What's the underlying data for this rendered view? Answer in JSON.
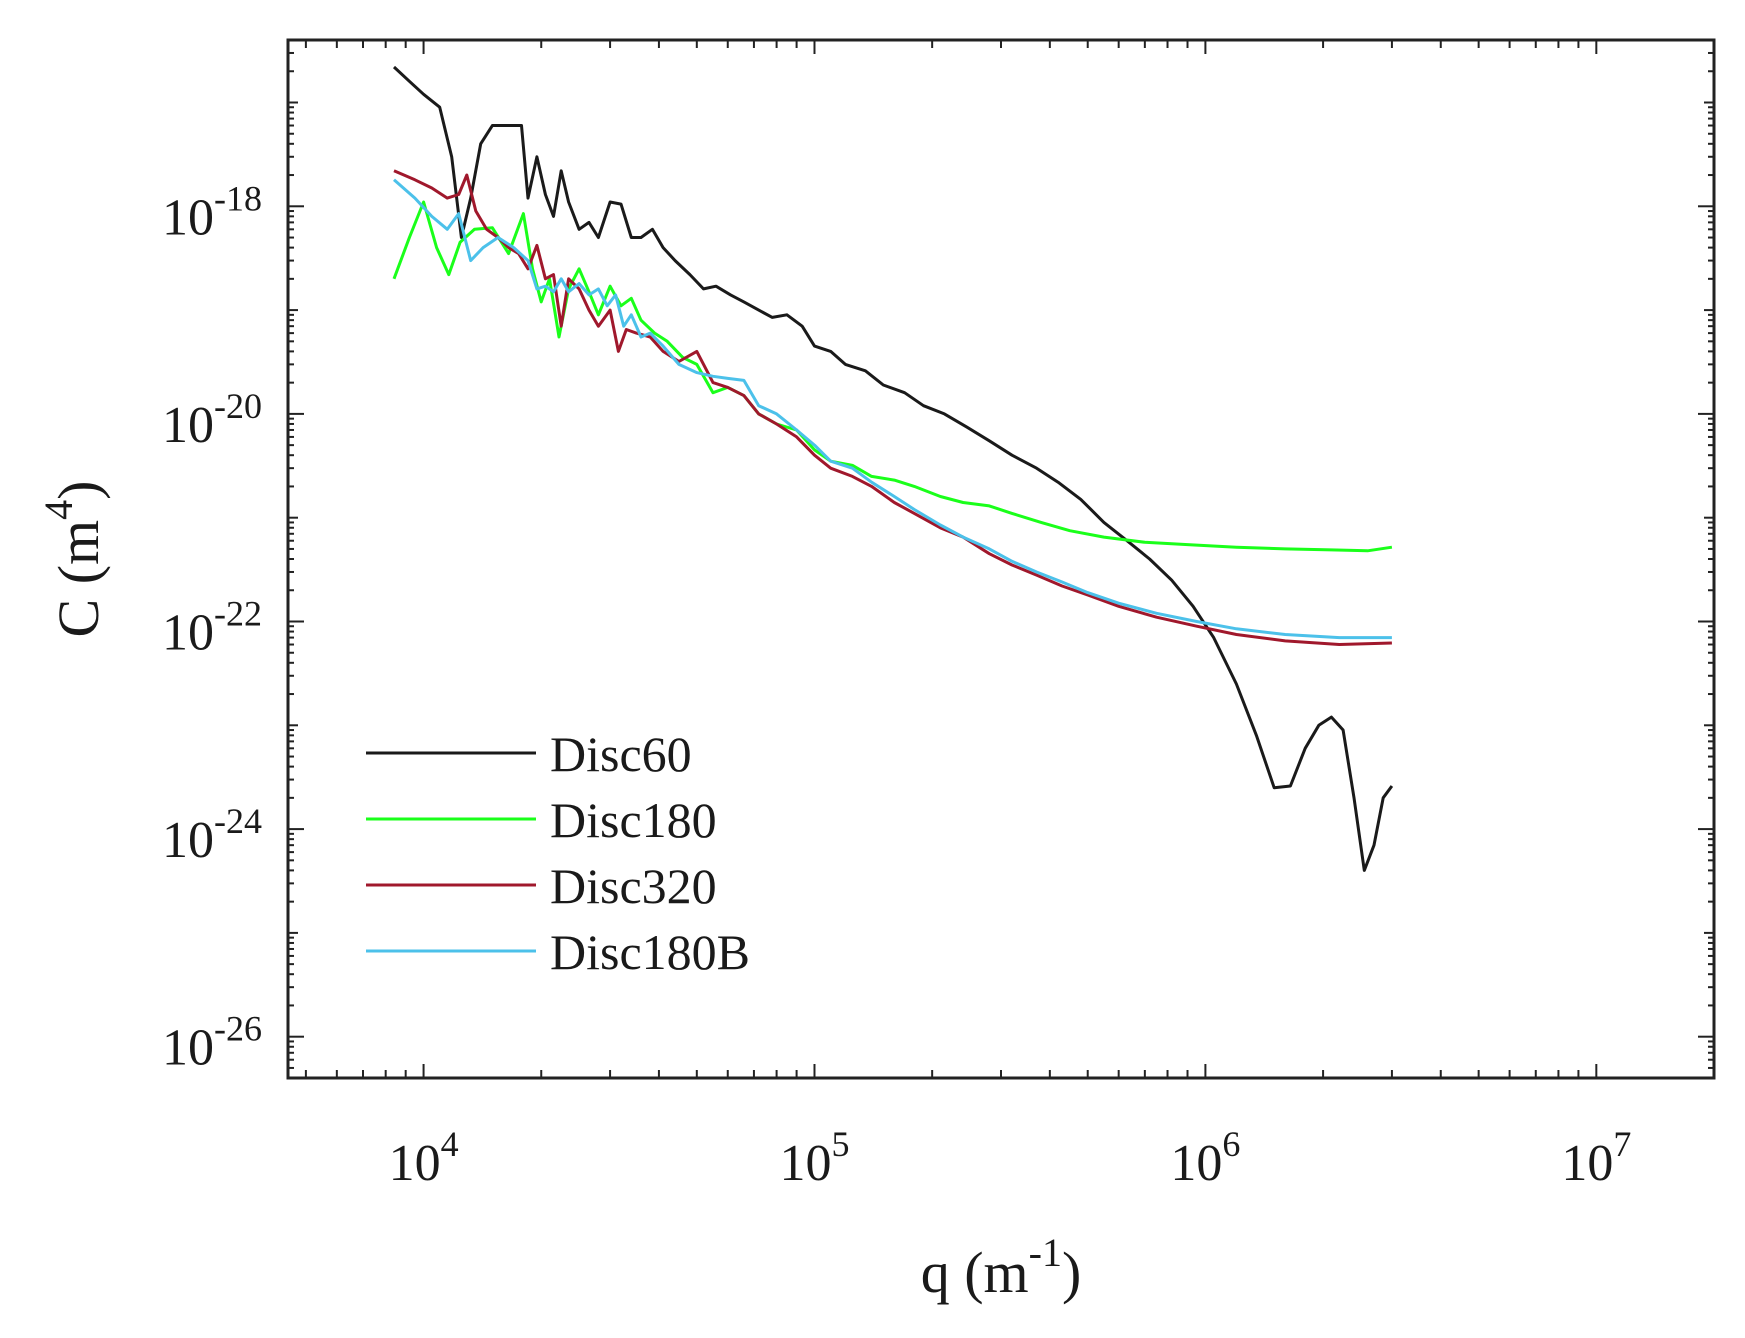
{
  "chart_data": {
    "type": "line",
    "xscale": "log",
    "yscale": "log",
    "xlim": [
      4500,
      20000000
    ],
    "ylim": [
      4e-27,
      4e-17
    ],
    "xlabel": {
      "base": "q (m",
      "sup": "-1",
      "tail": ")"
    },
    "ylabel": {
      "base": "C (m",
      "sup": "4",
      "tail": ")"
    },
    "x_ticks": [
      {
        "value": 10000,
        "base": "10",
        "exp": "4"
      },
      {
        "value": 100000,
        "base": "10",
        "exp": "5"
      },
      {
        "value": 1000000,
        "base": "10",
        "exp": "6"
      },
      {
        "value": 10000000,
        "base": "10",
        "exp": "7"
      }
    ],
    "y_ticks": [
      {
        "value": 1e-18,
        "base": "10",
        "exp": "-18"
      },
      {
        "value": 1e-20,
        "base": "10",
        "exp": "-20"
      },
      {
        "value": 1e-22,
        "base": "10",
        "exp": "-22"
      },
      {
        "value": 1e-24,
        "base": "10",
        "exp": "-24"
      },
      {
        "value": 1e-26,
        "base": "10",
        "exp": "-26"
      }
    ],
    "legend_position": "bottom-left",
    "series": [
      {
        "name": "Disc60",
        "color": "#1a1a1a",
        "points": [
          [
            8400,
            2.2e-17
          ],
          [
            9200,
            1.6e-17
          ],
          [
            10000,
            1.2e-17
          ],
          [
            11000,
            9e-18
          ],
          [
            11800,
            3e-18
          ],
          [
            12500,
            5e-19
          ],
          [
            13200,
            1.2e-18
          ],
          [
            14000,
            4e-18
          ],
          [
            15000,
            6e-18
          ],
          [
            16500,
            6e-18
          ],
          [
            17800,
            6e-18
          ],
          [
            18500,
            1.2e-18
          ],
          [
            19500,
            3e-18
          ],
          [
            20500,
            1.3e-18
          ],
          [
            21500,
            8e-19
          ],
          [
            22500,
            2.2e-18
          ],
          [
            23500,
            1.1e-18
          ],
          [
            25000,
            6e-19
          ],
          [
            26500,
            7e-19
          ],
          [
            28000,
            5e-19
          ],
          [
            30000,
            1.1e-18
          ],
          [
            32000,
            1.05e-18
          ],
          [
            34000,
            5e-19
          ],
          [
            36000,
            5e-19
          ],
          [
            38500,
            6e-19
          ],
          [
            41000,
            4e-19
          ],
          [
            44000,
            3e-19
          ],
          [
            48000,
            2.2e-19
          ],
          [
            52000,
            1.6e-19
          ],
          [
            56000,
            1.7e-19
          ],
          [
            61000,
            1.4e-19
          ],
          [
            66000,
            1.2e-19
          ],
          [
            72000,
            1e-19
          ],
          [
            78000,
            8.5e-20
          ],
          [
            85000,
            9e-20
          ],
          [
            93000,
            7e-20
          ],
          [
            100000,
            4.5e-20
          ],
          [
            110000,
            4e-20
          ],
          [
            120000,
            3e-20
          ],
          [
            135000,
            2.6e-20
          ],
          [
            150000,
            1.9e-20
          ],
          [
            170000,
            1.6e-20
          ],
          [
            190000,
            1.2e-20
          ],
          [
            215000,
            1e-20
          ],
          [
            245000,
            7.5e-21
          ],
          [
            280000,
            5.5e-21
          ],
          [
            320000,
            4e-21
          ],
          [
            370000,
            3e-21
          ],
          [
            420000,
            2.2e-21
          ],
          [
            480000,
            1.5e-21
          ],
          [
            550000,
            9e-22
          ],
          [
            630000,
            6e-22
          ],
          [
            720000,
            4e-22
          ],
          [
            820000,
            2.5e-22
          ],
          [
            930000,
            1.4e-22
          ],
          [
            1050000,
            7e-23
          ],
          [
            1200000,
            2.5e-23
          ],
          [
            1350000,
            8e-24
          ],
          [
            1500000,
            2.5e-24
          ],
          [
            1650000,
            2.6e-24
          ],
          [
            1800000,
            6e-24
          ],
          [
            1950000,
            1e-23
          ],
          [
            2100000,
            1.2e-23
          ],
          [
            2250000,
            9e-24
          ],
          [
            2400000,
            2e-24
          ],
          [
            2550000,
            4e-25
          ],
          [
            2700000,
            7e-25
          ],
          [
            2850000,
            2e-24
          ],
          [
            3000000,
            2.6e-24
          ]
        ]
      },
      {
        "name": "Disc180",
        "color": "#1aff1a",
        "points": [
          [
            8400,
            2e-19
          ],
          [
            9200,
            5e-19
          ],
          [
            10000,
            1.1e-18
          ],
          [
            10800,
            4e-19
          ],
          [
            11600,
            2.2e-19
          ],
          [
            12400,
            4.5e-19
          ],
          [
            13500,
            6e-19
          ],
          [
            15000,
            6.2e-19
          ],
          [
            16500,
            3.5e-19
          ],
          [
            18000,
            8.5e-19
          ],
          [
            19000,
            2.5e-19
          ],
          [
            20000,
            1.2e-19
          ],
          [
            21000,
            2e-19
          ],
          [
            22200,
            5.5e-20
          ],
          [
            23500,
            1.6e-19
          ],
          [
            25000,
            2.5e-19
          ],
          [
            26500,
            1.5e-19
          ],
          [
            28000,
            9e-20
          ],
          [
            30000,
            1.7e-19
          ],
          [
            32000,
            1.1e-19
          ],
          [
            34000,
            1.3e-19
          ],
          [
            36000,
            8e-20
          ],
          [
            39000,
            6e-20
          ],
          [
            42000,
            5e-20
          ],
          [
            46000,
            3.5e-20
          ],
          [
            50000,
            3e-20
          ],
          [
            55000,
            1.6e-20
          ],
          [
            60000,
            1.8e-20
          ],
          [
            66000,
            1.5e-20
          ],
          [
            72000,
            1e-20
          ],
          [
            80000,
            8e-21
          ],
          [
            90000,
            7e-21
          ],
          [
            100000,
            4.5e-21
          ],
          [
            110000,
            3.5e-21
          ],
          [
            125000,
            3.2e-21
          ],
          [
            140000,
            2.5e-21
          ],
          [
            160000,
            2.3e-21
          ],
          [
            180000,
            2e-21
          ],
          [
            210000,
            1.6e-21
          ],
          [
            240000,
            1.4e-21
          ],
          [
            280000,
            1.3e-21
          ],
          [
            320000,
            1.1e-21
          ],
          [
            380000,
            9e-22
          ],
          [
            450000,
            7.5e-22
          ],
          [
            550000,
            6.5e-22
          ],
          [
            700000,
            5.8e-22
          ],
          [
            900000,
            5.5e-22
          ],
          [
            1200000,
            5.2e-22
          ],
          [
            1600000,
            5e-22
          ],
          [
            2100000,
            4.9e-22
          ],
          [
            2600000,
            4.8e-22
          ],
          [
            3000000,
            5.2e-22
          ]
        ]
      },
      {
        "name": "Disc320",
        "color": "#a0182c",
        "points": [
          [
            8400,
            2.2e-18
          ],
          [
            9500,
            1.8e-18
          ],
          [
            10500,
            1.5e-18
          ],
          [
            11500,
            1.2e-18
          ],
          [
            12300,
            1.3e-18
          ],
          [
            12900,
            2e-18
          ],
          [
            13600,
            9e-19
          ],
          [
            14500,
            6e-19
          ],
          [
            15500,
            5e-19
          ],
          [
            16500,
            4e-19
          ],
          [
            17500,
            3.5e-19
          ],
          [
            18500,
            2.5e-19
          ],
          [
            19500,
            4.2e-19
          ],
          [
            20500,
            2e-19
          ],
          [
            21500,
            2.2e-19
          ],
          [
            22500,
            7e-20
          ],
          [
            23500,
            2e-19
          ],
          [
            25000,
            1.6e-19
          ],
          [
            26500,
            1e-19
          ],
          [
            28000,
            7e-20
          ],
          [
            30000,
            1e-19
          ],
          [
            31500,
            4e-20
          ],
          [
            33000,
            6.5e-20
          ],
          [
            35000,
            6e-20
          ],
          [
            38000,
            5.5e-20
          ],
          [
            41000,
            4e-20
          ],
          [
            45000,
            3.2e-20
          ],
          [
            50000,
            4e-20
          ],
          [
            55000,
            2e-20
          ],
          [
            60000,
            1.8e-20
          ],
          [
            66000,
            1.5e-20
          ],
          [
            72000,
            1e-20
          ],
          [
            80000,
            8e-21
          ],
          [
            90000,
            6e-21
          ],
          [
            100000,
            4e-21
          ],
          [
            110000,
            3e-21
          ],
          [
            125000,
            2.5e-21
          ],
          [
            140000,
            2e-21
          ],
          [
            160000,
            1.4e-21
          ],
          [
            180000,
            1.1e-21
          ],
          [
            210000,
            8e-22
          ],
          [
            240000,
            6.5e-22
          ],
          [
            280000,
            4.5e-22
          ],
          [
            320000,
            3.5e-22
          ],
          [
            370000,
            2.8e-22
          ],
          [
            430000,
            2.2e-22
          ],
          [
            500000,
            1.8e-22
          ],
          [
            600000,
            1.4e-22
          ],
          [
            750000,
            1.1e-22
          ],
          [
            950000,
            9e-23
          ],
          [
            1200000,
            7.5e-23
          ],
          [
            1600000,
            6.5e-23
          ],
          [
            2200000,
            6e-23
          ],
          [
            3000000,
            6.2e-23
          ]
        ]
      },
      {
        "name": "Disc180B",
        "color": "#4cc1ea",
        "points": [
          [
            8400,
            1.8e-18
          ],
          [
            9500,
            1.2e-18
          ],
          [
            10500,
            8e-19
          ],
          [
            11500,
            6e-19
          ],
          [
            12300,
            8.5e-19
          ],
          [
            13200,
            3e-19
          ],
          [
            14200,
            4e-19
          ],
          [
            15500,
            5e-19
          ],
          [
            17000,
            4e-19
          ],
          [
            18500,
            3e-19
          ],
          [
            19500,
            1.6e-19
          ],
          [
            20500,
            1.7e-19
          ],
          [
            21500,
            1.5e-19
          ],
          [
            22500,
            2e-19
          ],
          [
            23500,
            1.5e-19
          ],
          [
            25000,
            1.8e-19
          ],
          [
            26500,
            1.4e-19
          ],
          [
            28000,
            1.6e-19
          ],
          [
            29500,
            1.1e-19
          ],
          [
            31000,
            1.4e-19
          ],
          [
            32500,
            7e-20
          ],
          [
            34000,
            9e-20
          ],
          [
            36000,
            5.5e-20
          ],
          [
            38000,
            6e-20
          ],
          [
            41000,
            4.5e-20
          ],
          [
            45000,
            3e-20
          ],
          [
            50000,
            2.5e-20
          ],
          [
            55000,
            2.3e-20
          ],
          [
            60000,
            2.2e-20
          ],
          [
            66000,
            2.1e-20
          ],
          [
            72000,
            1.2e-20
          ],
          [
            80000,
            1e-20
          ],
          [
            90000,
            7e-21
          ],
          [
            100000,
            5e-21
          ],
          [
            110000,
            3.5e-21
          ],
          [
            125000,
            3e-21
          ],
          [
            140000,
            2.2e-21
          ],
          [
            160000,
            1.6e-21
          ],
          [
            180000,
            1.2e-21
          ],
          [
            210000,
            8.5e-22
          ],
          [
            240000,
            6.5e-22
          ],
          [
            280000,
            5e-22
          ],
          [
            320000,
            3.8e-22
          ],
          [
            370000,
            3e-22
          ],
          [
            430000,
            2.4e-22
          ],
          [
            500000,
            1.9e-22
          ],
          [
            600000,
            1.5e-22
          ],
          [
            750000,
            1.2e-22
          ],
          [
            950000,
            1e-22
          ],
          [
            1200000,
            8.5e-23
          ],
          [
            1600000,
            7.5e-23
          ],
          [
            2200000,
            7e-23
          ],
          [
            3000000,
            7e-23
          ]
        ]
      }
    ]
  }
}
